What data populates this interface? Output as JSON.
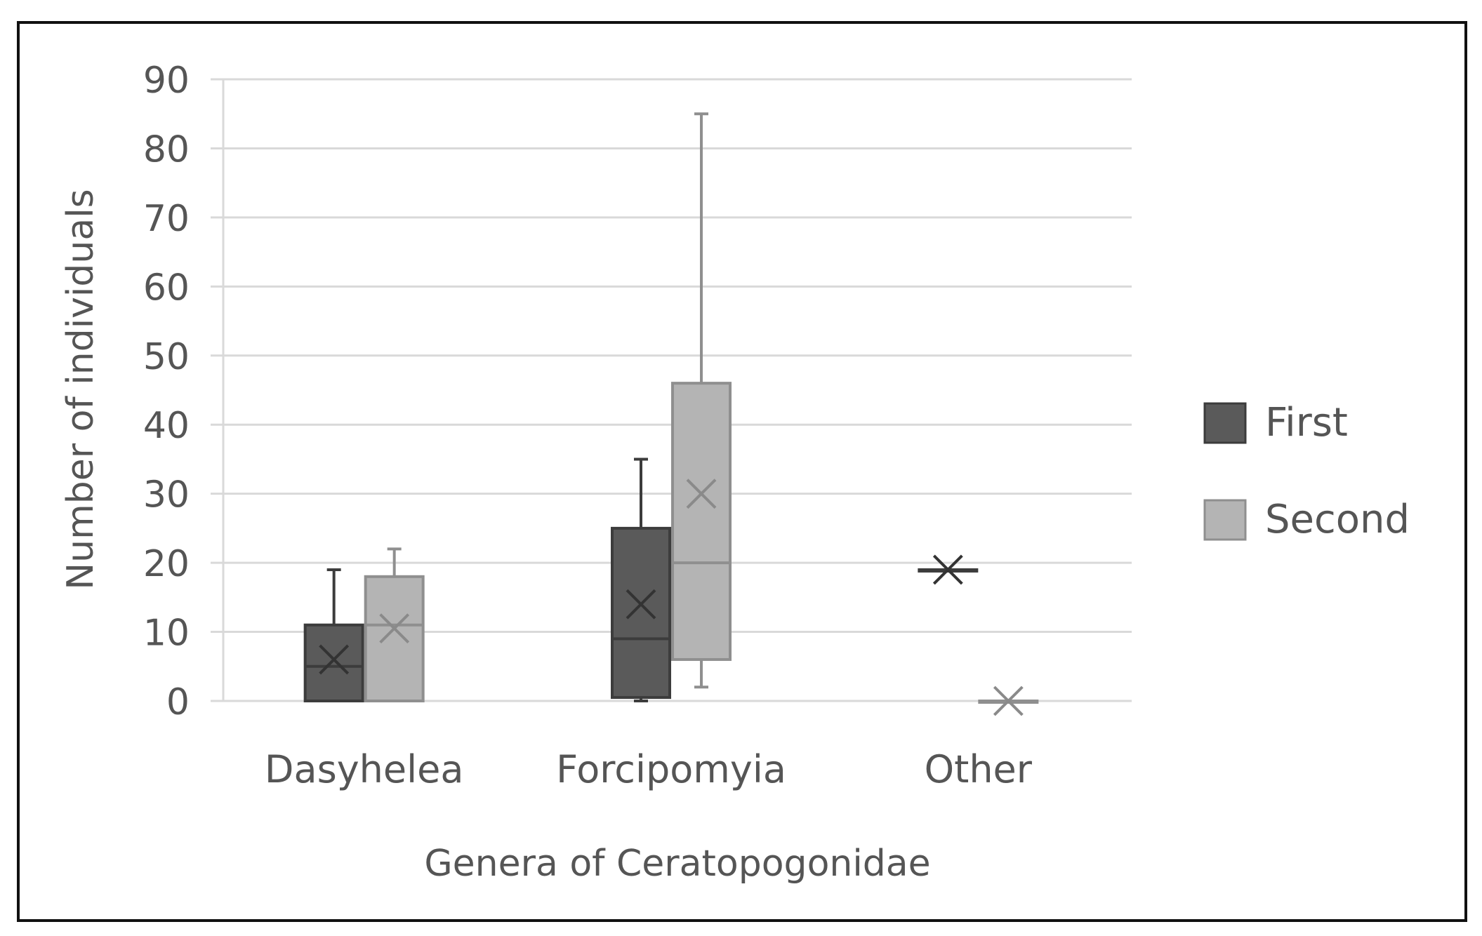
{
  "chart_data": {
    "type": "box",
    "title": "",
    "xlabel": "Genera of Ceratopogonidae",
    "ylabel": "Number of individuals",
    "ylim": [
      0,
      90
    ],
    "yticks": [
      0,
      10,
      20,
      30,
      40,
      50,
      60,
      70,
      80,
      90
    ],
    "grid": true,
    "legend_position": "right",
    "categories": [
      "Dasyhelea",
      "Forcipomyia",
      "Other"
    ],
    "series": [
      {
        "name": "First",
        "color": "#5a5a5a",
        "boxes": [
          {
            "category": "Dasyhelea",
            "min": 0,
            "q1": 0,
            "median": 5,
            "q3": 11,
            "max": 19,
            "mean": 6
          },
          {
            "category": "Forcipomyia",
            "min": 0,
            "q1": 0.5,
            "median": 9,
            "q3": 25,
            "max": 35,
            "mean": 14
          },
          {
            "category": "Other",
            "min": 19,
            "q1": 19,
            "median": 19,
            "q3": 19,
            "max": 19,
            "mean": 19
          }
        ]
      },
      {
        "name": "Second",
        "color": "#b4b4b4",
        "boxes": [
          {
            "category": "Dasyhelea",
            "min": 0,
            "q1": 0,
            "median": 11,
            "q3": 18,
            "max": 22,
            "mean": 10.5
          },
          {
            "category": "Forcipomyia",
            "min": 2,
            "q1": 6,
            "median": 20,
            "q3": 46,
            "max": 85,
            "mean": 30
          },
          {
            "category": "Other",
            "min": 0,
            "q1": 0,
            "median": 0,
            "q3": 0,
            "max": 0,
            "mean": 0
          }
        ]
      }
    ]
  }
}
